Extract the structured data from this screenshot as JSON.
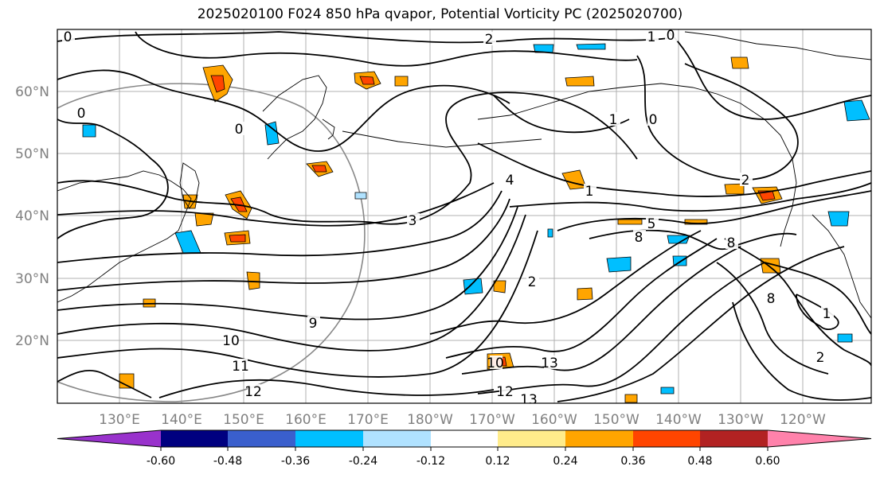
{
  "title": "2025020100 F024 850 hPa qvapor, Potential Vorticity PC (2025020700)",
  "lat_labels": [
    "60°N",
    "50°N",
    "40°N",
    "30°N",
    "20°N"
  ],
  "lon_labels": [
    "130°E",
    "140°E",
    "150°E",
    "160°E",
    "170°E",
    "180°W",
    "170°W",
    "160°W",
    "150°W",
    "140°W",
    "130°W",
    "120°W"
  ],
  "colorbar": {
    "colors": [
      "#9932cc",
      "#000080",
      "#3a5fcd",
      "#00bfff",
      "#b0e2ff",
      "#ffffff",
      "#ffec8b",
      "#ffa500",
      "#ff4500",
      "#b22222",
      "#ff82ab"
    ],
    "tick_labels": [
      "-0.60",
      "-0.48",
      "-0.36",
      "-0.24",
      "-0.12",
      "0.12",
      "0.24",
      "0.36",
      "0.48",
      "0.60"
    ]
  },
  "contour_labels": [
    "0",
    "2",
    "1",
    "0",
    "0",
    "0",
    "1",
    "0",
    "3",
    "4",
    "1",
    "2",
    "5",
    "8",
    "8",
    "2",
    "9",
    "10",
    "11",
    "12",
    "13",
    "10",
    "12",
    "13",
    "8",
    "1",
    "2"
  ],
  "colors": {
    "land_line": "#000000",
    "grid": "#b0b0b0",
    "axis_text": "#808080",
    "circle": "#888888"
  }
}
